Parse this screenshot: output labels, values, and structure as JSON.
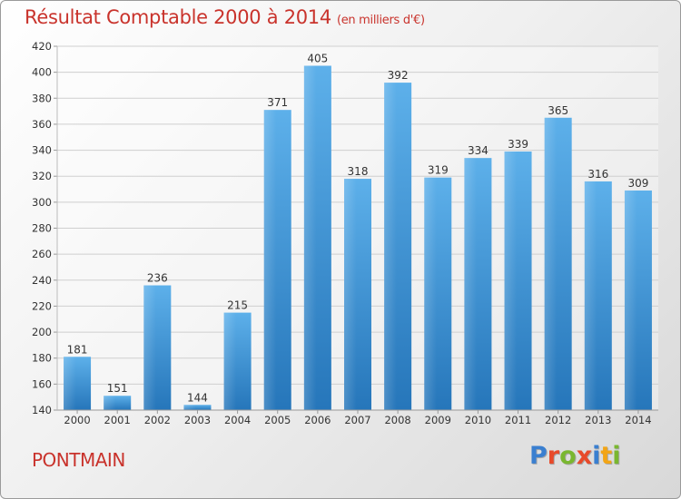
{
  "header": {
    "title": "Résultat Comptable 2000 à 2014",
    "subtitle": "(en milliers d'€)"
  },
  "footer": {
    "town": "PONTMAIN",
    "logo_text": "Proxiti",
    "logo_colors": [
      "#3a7fd0",
      "#e84a2a",
      "#7ab730",
      "#e84a2a",
      "#3a7fd0",
      "#f2a516",
      "#7ab730"
    ]
  },
  "colors": {
    "title": "#c9332c",
    "bar_light": "#5aaee8",
    "bar_dark": "#2878bb",
    "grid": "#cfcfcf",
    "axis_text": "#333333"
  },
  "chart_data": {
    "type": "bar",
    "categories": [
      "2000",
      "2001",
      "2002",
      "2003",
      "2004",
      "2005",
      "2006",
      "2007",
      "2008",
      "2009",
      "2010",
      "2011",
      "2012",
      "2013",
      "2014"
    ],
    "values": [
      181,
      151,
      236,
      144,
      215,
      371,
      405,
      318,
      392,
      319,
      334,
      339,
      365,
      316,
      309
    ],
    "ylim": [
      140,
      420
    ],
    "yticks": [
      140,
      160,
      180,
      200,
      220,
      240,
      260,
      280,
      300,
      320,
      340,
      360,
      380,
      400,
      420
    ],
    "grid": true,
    "data_labels": true
  }
}
